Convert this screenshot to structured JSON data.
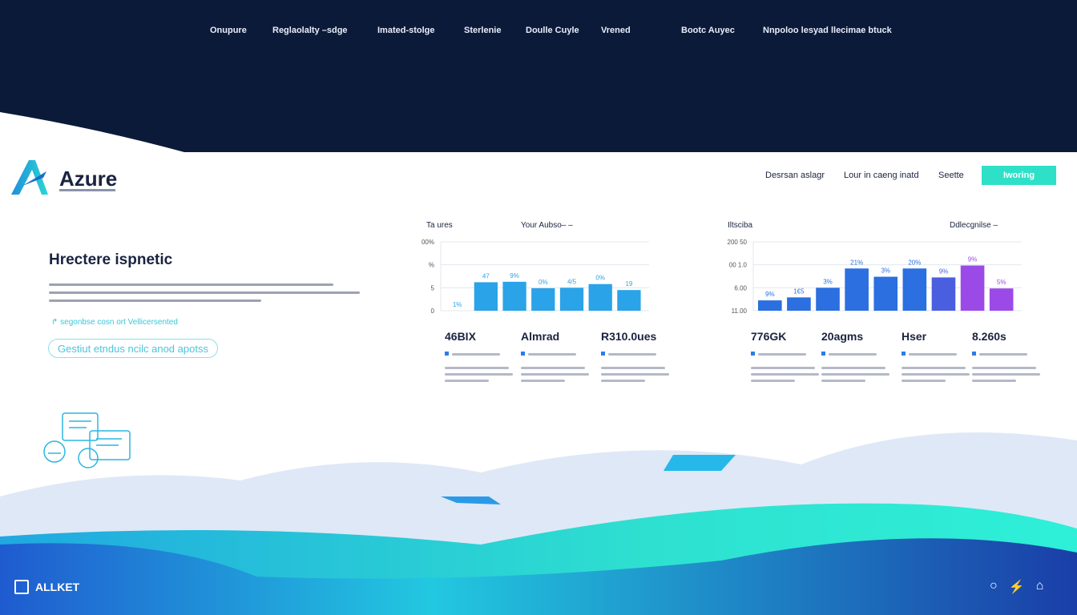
{
  "top_nav": [
    "Onupure",
    "Reglaolalty –sdge",
    "Imated-stolge",
    "Sterlenie",
    "Doulle Cuyle",
    "Vrened",
    "Bootc Auyec",
    "Nnpoloo lesyad llecimae btuck"
  ],
  "brand": {
    "name": "Azure"
  },
  "header_nav": [
    "Desrsan aslagr",
    "Lour in caeng inatd",
    "Seette"
  ],
  "header_cta": "Iworing",
  "hero": {
    "title": "Hrectere ispnetic",
    "link": "segonbse cosn ort Vellicersented",
    "button": "Gestiut etndus ncilc anod apotss"
  },
  "colors": {
    "navy": "#0c1a3a",
    "accent": "#2fe0c8",
    "bar": "#2aa3e8",
    "bar_blue": "#2b6fe0",
    "bar_purple": "#9b4ae8"
  },
  "chart_data": [
    {
      "type": "bar",
      "title": "Ta ures",
      "subtitle": "Your Aubso– –",
      "yticks": [
        "0",
        "5",
        "%",
        "00%"
      ],
      "ylim": [
        0,
        15
      ],
      "values": [
        0,
        6.2,
        6.3,
        4.9,
        5,
        5.8,
        4.5
      ],
      "labels": [
        "1%",
        "47",
        "9%",
        "0%",
        "4/5",
        "0%",
        "19"
      ],
      "stats": [
        "46BIX",
        "Almrad",
        "R310.0ues"
      ]
    },
    {
      "type": "bar",
      "title": "Iltsciba",
      "subtitle": "Ddlecgnilse –",
      "yticks": [
        "11.00",
        "6.00",
        "00 1.0",
        "200 50"
      ],
      "ylim": [
        0,
        3
      ],
      "values": [
        0.45,
        0.58,
        1.0,
        1.84,
        1.48,
        1.84,
        1.45,
        1.97,
        0.97
      ],
      "labels": [
        "9%",
        "1€5",
        "3%",
        "21%",
        "3%",
        "20%",
        "9%",
        "9%",
        "5%"
      ],
      "stats": [
        "776GK",
        "20agms",
        "Hser",
        "8.260s"
      ]
    }
  ],
  "footer": {
    "brand": "ALLKET",
    "icons": [
      "circle-icon",
      "magic-wand-icon",
      "home-icon"
    ]
  }
}
